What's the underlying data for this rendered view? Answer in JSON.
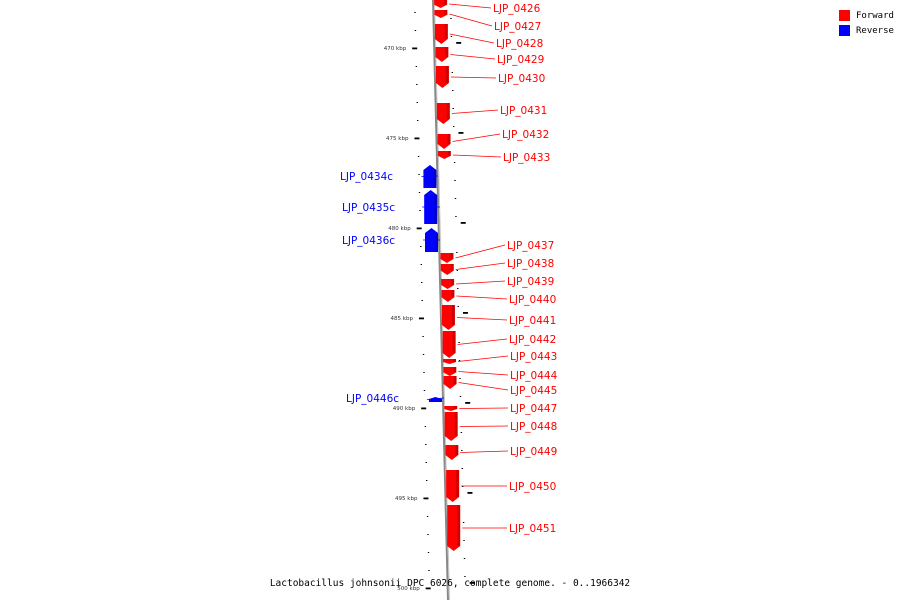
{
  "caption": "Lactobacillus johnsonii DPC 6026, complete genome. - 0..1966342",
  "legend": [
    {
      "label": "Forward",
      "color": "#ff0000"
    },
    {
      "label": "Reverse",
      "color": "#0000ff"
    }
  ],
  "colors": {
    "forward": "#ff0000",
    "reverse": "#0000ff",
    "backbone": "#888888"
  },
  "scale_marks": [
    "470 kbp",
    "475 kbp",
    "480 kbp",
    "485 kbp",
    "490 kbp",
    "495 kbp",
    "500 kbp"
  ],
  "genes": [
    {
      "name": "LJP_0426",
      "strand": "forward"
    },
    {
      "name": "LJP_0427",
      "strand": "forward"
    },
    {
      "name": "LJP_0428",
      "strand": "forward"
    },
    {
      "name": "LJP_0429",
      "strand": "forward"
    },
    {
      "name": "LJP_0430",
      "strand": "forward"
    },
    {
      "name": "LJP_0431",
      "strand": "forward"
    },
    {
      "name": "LJP_0432",
      "strand": "forward"
    },
    {
      "name": "LJP_0433",
      "strand": "forward"
    },
    {
      "name": "LJP_0434c",
      "strand": "reverse"
    },
    {
      "name": "LJP_0435c",
      "strand": "reverse"
    },
    {
      "name": "LJP_0436c",
      "strand": "reverse"
    },
    {
      "name": "LJP_0437",
      "strand": "forward"
    },
    {
      "name": "LJP_0438",
      "strand": "forward"
    },
    {
      "name": "LJP_0439",
      "strand": "forward"
    },
    {
      "name": "LJP_0440",
      "strand": "forward"
    },
    {
      "name": "LJP_0441",
      "strand": "forward"
    },
    {
      "name": "LJP_0442",
      "strand": "forward"
    },
    {
      "name": "LJP_0443",
      "strand": "forward"
    },
    {
      "name": "LJP_0444",
      "strand": "forward"
    },
    {
      "name": "LJP_0445",
      "strand": "forward"
    },
    {
      "name": "LJP_0446c",
      "strand": "reverse"
    },
    {
      "name": "LJP_0447",
      "strand": "forward"
    },
    {
      "name": "LJP_0448",
      "strand": "forward"
    },
    {
      "name": "LJP_0449",
      "strand": "forward"
    },
    {
      "name": "LJP_0450",
      "strand": "forward"
    },
    {
      "name": "LJP_0451",
      "strand": "forward"
    }
  ]
}
